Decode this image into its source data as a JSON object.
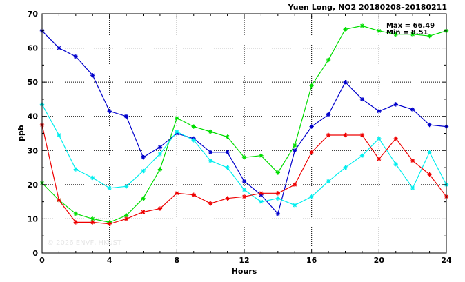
{
  "chart_data": {
    "type": "line",
    "title": "Yuen Long, NO2 20180208–20180211",
    "xlabel": "Hours",
    "ylabel": "ppb",
    "xlim": [
      0,
      24
    ],
    "ylim": [
      0,
      70
    ],
    "xticks": [
      0,
      4,
      8,
      12,
      16,
      20,
      24
    ],
    "yticks": [
      0,
      10,
      20,
      30,
      40,
      50,
      60,
      70
    ],
    "grid": true,
    "x": [
      0,
      1,
      2,
      3,
      4,
      5,
      6,
      7,
      8,
      9,
      10,
      11,
      12,
      13,
      14,
      15,
      16,
      17,
      18,
      19,
      20,
      21,
      22,
      23,
      24
    ],
    "series": [
      {
        "color": "#0000cc",
        "values": [
          65.0,
          60.0,
          57.5,
          52.0,
          41.5,
          40.0,
          28.0,
          31.0,
          35.0,
          33.5,
          29.5,
          29.5,
          21.0,
          17.0,
          11.5,
          30.0,
          37.0,
          40.5,
          50.0,
          45.0,
          41.5,
          43.5,
          42.0,
          37.5,
          37.0
        ]
      },
      {
        "color": "#00dd00",
        "values": [
          20.5,
          15.5,
          11.5,
          10.0,
          9.0,
          11.0,
          16.0,
          24.5,
          39.5,
          37.0,
          35.5,
          34.0,
          28.0,
          28.5,
          23.5,
          31.5,
          49.0,
          56.5,
          65.5,
          66.49,
          65.0,
          64.0,
          64.0,
          63.5,
          65.0
        ]
      },
      {
        "color": "#00eeee",
        "values": [
          43.5,
          34.5,
          24.5,
          22.0,
          19.0,
          19.5,
          24.0,
          29.0,
          35.5,
          33.0,
          27.0,
          25.0,
          18.5,
          15.0,
          16.0,
          14.0,
          16.5,
          21.0,
          25.0,
          28.5,
          33.5,
          26.0,
          19.0,
          29.5,
          20.0
        ]
      },
      {
        "color": "#ee0000",
        "values": [
          37.5,
          15.5,
          9.0,
          9.0,
          8.51,
          10.0,
          12.0,
          13.0,
          17.5,
          17.0,
          14.5,
          16.0,
          16.5,
          17.5,
          17.5,
          20.0,
          29.5,
          34.5,
          34.5,
          34.5,
          27.5,
          33.5,
          27.0,
          23.0,
          16.5
        ]
      }
    ],
    "annotations": {
      "max_label": "Max = 66.49",
      "min_label": "Min = 8.51"
    },
    "watermark": "© 2026  ENVF, HKUST"
  }
}
